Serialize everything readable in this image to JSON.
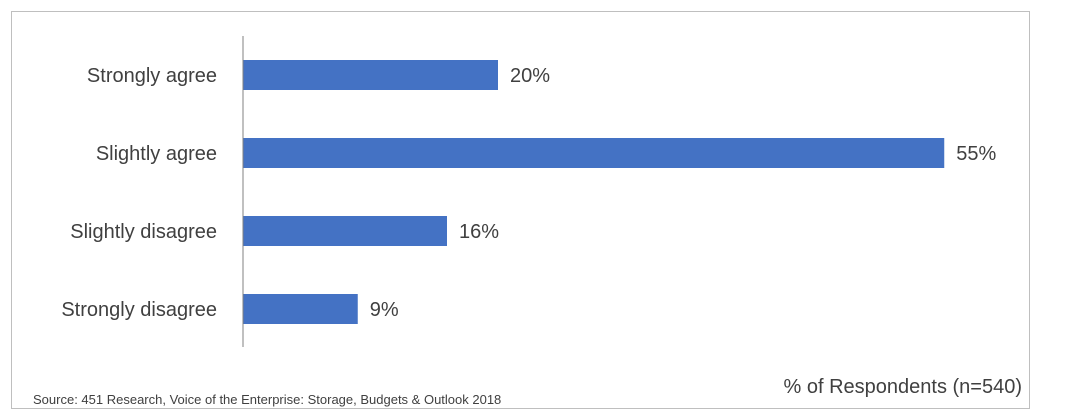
{
  "chart_data": {
    "type": "bar",
    "orientation": "horizontal",
    "categories": [
      "Strongly agree",
      "Slightly agree",
      "Slightly disagree",
      "Strongly disagree"
    ],
    "values": [
      20,
      55,
      16,
      9
    ],
    "value_labels": [
      "20%",
      "55%",
      "16%",
      "9%"
    ],
    "xlabel": "% of Respondents (n=540)",
    "bar_color": "#4472C4",
    "grid": false,
    "legend": "none"
  },
  "source": "Source: 451 Research, Voice of the Enterprise: Storage, Budgets & Outlook 2018"
}
